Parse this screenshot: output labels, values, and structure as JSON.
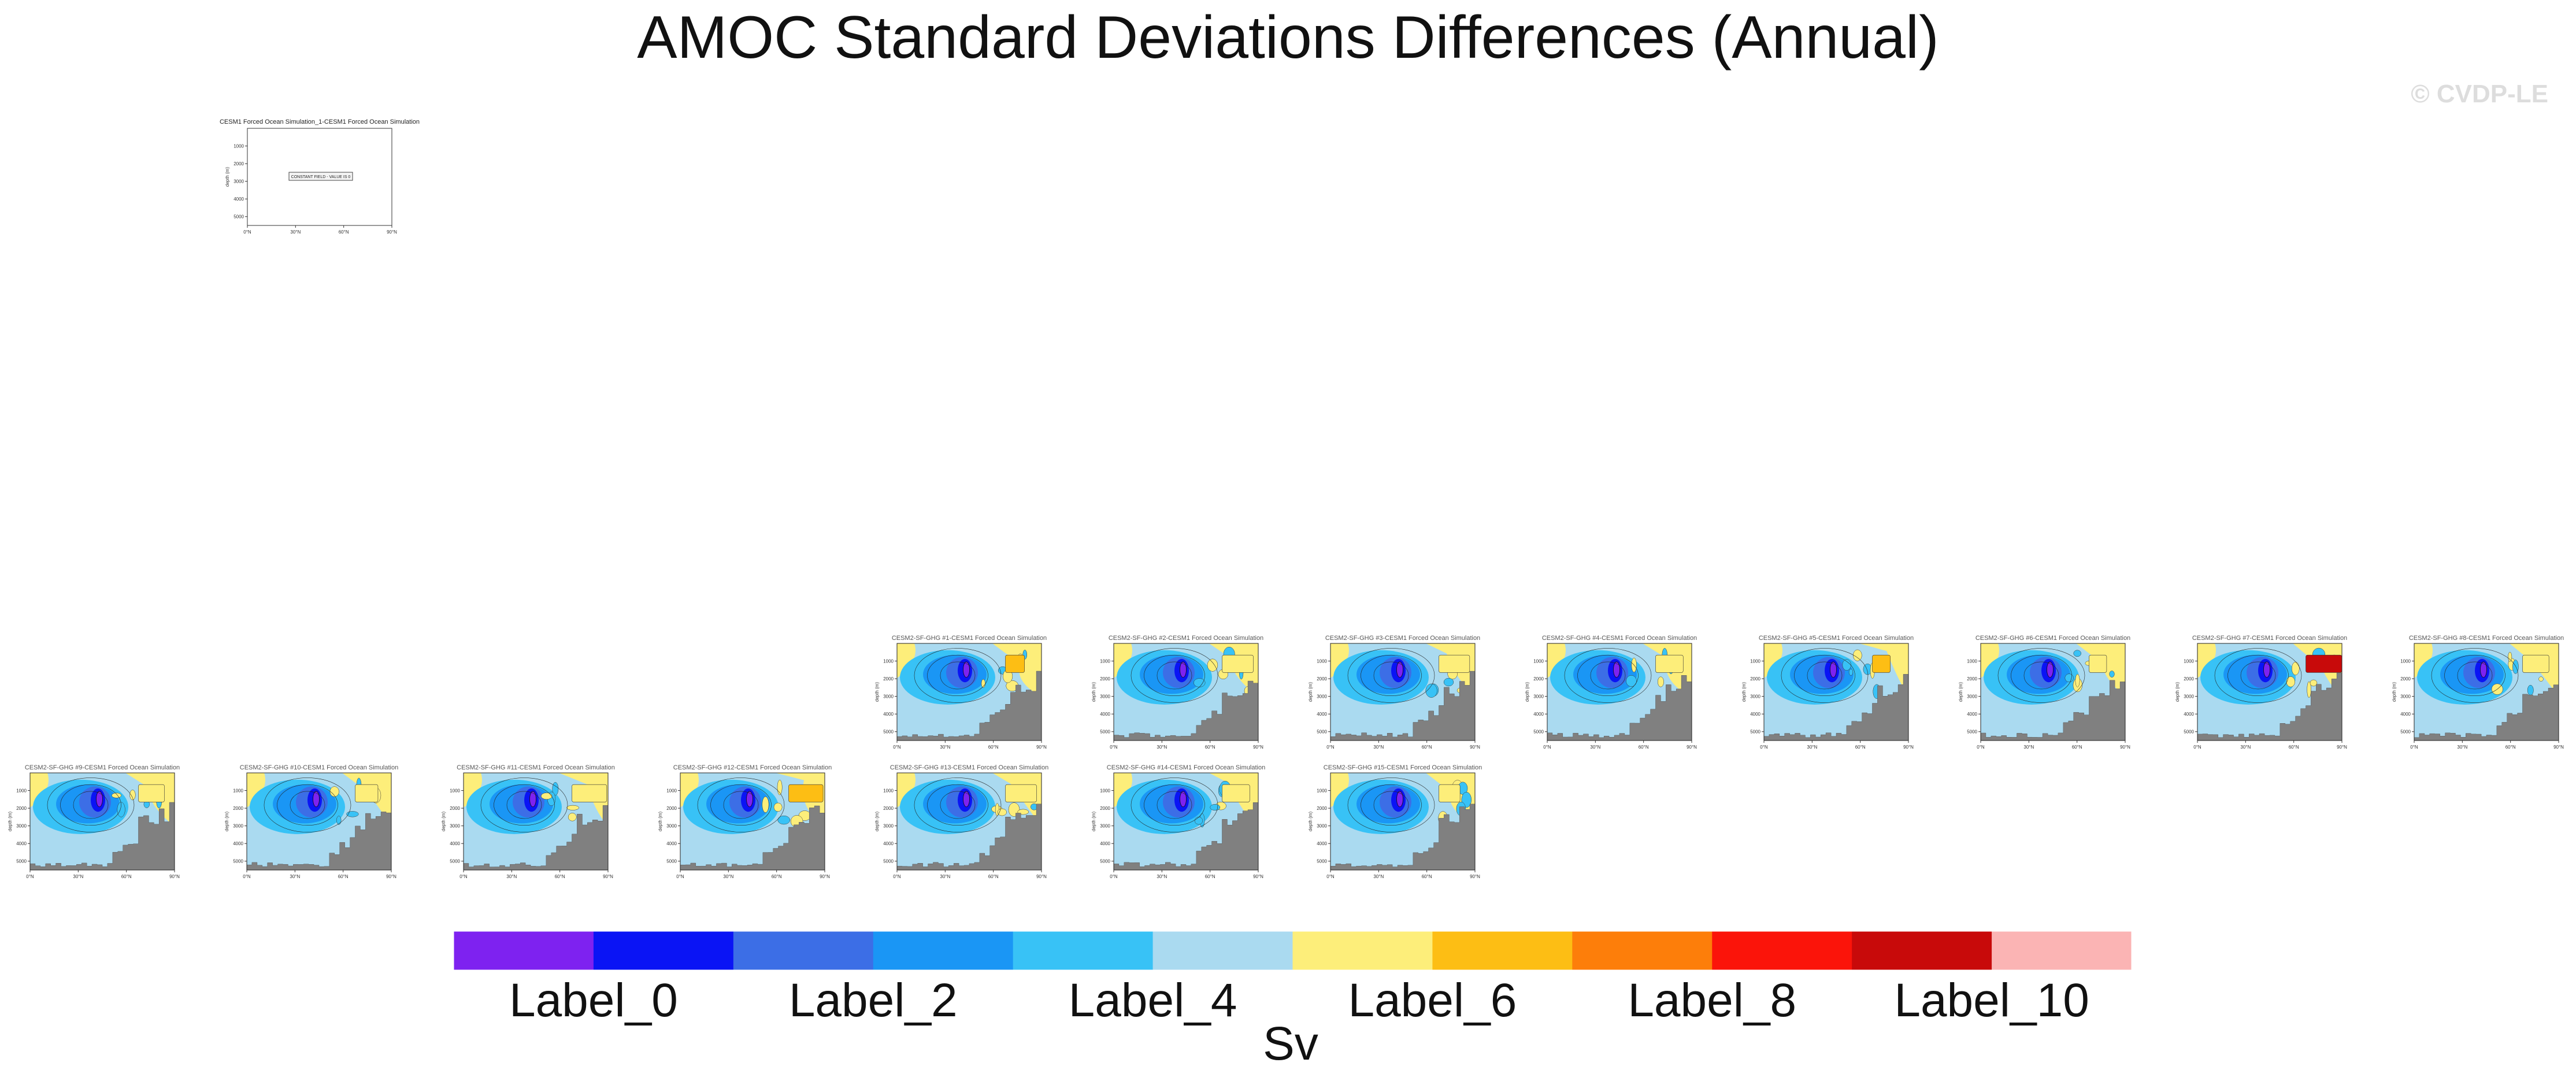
{
  "page": {
    "title": "AMOC Standard Deviations Differences (Annual)",
    "copyright": "© CVDP-LE"
  },
  "chart_data": {
    "type": "heatmap",
    "title": "AMOC Standard Deviations Differences (Annual)",
    "units": "Sv",
    "ylabel": "depth (m)",
    "xticks": [
      "0°N",
      "30°N",
      "60°N",
      "90°N"
    ],
    "yticks": [
      "1000",
      "2000",
      "3000",
      "4000",
      "5000"
    ],
    "ylim": [
      0,
      5500
    ],
    "xlim": [
      0,
      90
    ],
    "colorbar": {
      "colors": [
        "#7e22f0",
        "#0a14f5",
        "#3c6ee6",
        "#1a96f5",
        "#38c2f6",
        "#aadaf0",
        "#fdee7a",
        "#fdbe14",
        "#fd7e0a",
        "#fb140a",
        "#c80a0a",
        "#fbb4b4"
      ],
      "labels": [
        "Label_0",
        "Label_2",
        "Label_4",
        "Label_6",
        "Label_8",
        "Label_10"
      ],
      "label_boundary_index": [
        1,
        3,
        5,
        7,
        9,
        11
      ]
    },
    "reference_panel": {
      "title": "CESM1 Forced Ocean Simulation_1-CESM1 Forced Ocean Simulation",
      "note": "CONSTANT FIELD - VALUE IS 0"
    },
    "panels": [
      {
        "title": "CESM2-SF-GHG #1-CESM1 Forced Ocean Simulation",
        "row": 0,
        "col": 4,
        "seed": 11,
        "hot": "#fdbe14"
      },
      {
        "title": "CESM2-SF-GHG #2-CESM1 Forced Ocean Simulation",
        "row": 0,
        "col": 5,
        "seed": 23,
        "hot": "#fdee7a"
      },
      {
        "title": "CESM2-SF-GHG #3-CESM1 Forced Ocean Simulation",
        "row": 0,
        "col": 6,
        "seed": 37,
        "hot": "#fdee7a"
      },
      {
        "title": "CESM2-SF-GHG #4-CESM1 Forced Ocean Simulation",
        "row": 0,
        "col": 7,
        "seed": 41,
        "hot": "#fdee7a"
      },
      {
        "title": "CESM2-SF-GHG #5-CESM1 Forced Ocean Simulation",
        "row": 0,
        "col": 8,
        "seed": 53,
        "hot": "#fdbe14"
      },
      {
        "title": "CESM2-SF-GHG #6-CESM1 Forced Ocean Simulation",
        "row": 0,
        "col": 9,
        "seed": 67,
        "hot": "#fdee7a"
      },
      {
        "title": "CESM2-SF-GHG #7-CESM1 Forced Ocean Simulation",
        "row": 0,
        "col": 10,
        "seed": 71,
        "hot": "#c80a0a"
      },
      {
        "title": "CESM2-SF-GHG #8-CESM1 Forced Ocean Simulation",
        "row": 0,
        "col": 11,
        "seed": 83,
        "hot": "#fdee7a"
      },
      {
        "title": "CESM2-SF-GHG #9-CESM1 Forced Ocean Simulation",
        "row": 1,
        "col": 0,
        "seed": 97,
        "hot": "#fdee7a"
      },
      {
        "title": "CESM2-SF-GHG #10-CESM1 Forced Ocean Simulation",
        "row": 1,
        "col": 1,
        "seed": 101,
        "hot": "#fdee7a"
      },
      {
        "title": "CESM2-SF-GHG #11-CESM1 Forced Ocean Simulation",
        "row": 1,
        "col": 2,
        "seed": 113,
        "hot": "#fdee7a"
      },
      {
        "title": "CESM2-SF-GHG #12-CESM1 Forced Ocean Simulation",
        "row": 1,
        "col": 3,
        "seed": 127,
        "hot": "#fdbe14"
      },
      {
        "title": "CESM2-SF-GHG #13-CESM1 Forced Ocean Simulation",
        "row": 1,
        "col": 4,
        "seed": 131,
        "hot": "#fdee7a"
      },
      {
        "title": "CESM2-SF-GHG #14-CESM1 Forced Ocean Simulation",
        "row": 1,
        "col": 5,
        "seed": 149,
        "hot": "#fdee7a"
      },
      {
        "title": "CESM2-SF-GHG #15-CESM1 Forced Ocean Simulation",
        "row": 1,
        "col": 6,
        "seed": 157,
        "hot": "#fdee7a"
      }
    ]
  }
}
